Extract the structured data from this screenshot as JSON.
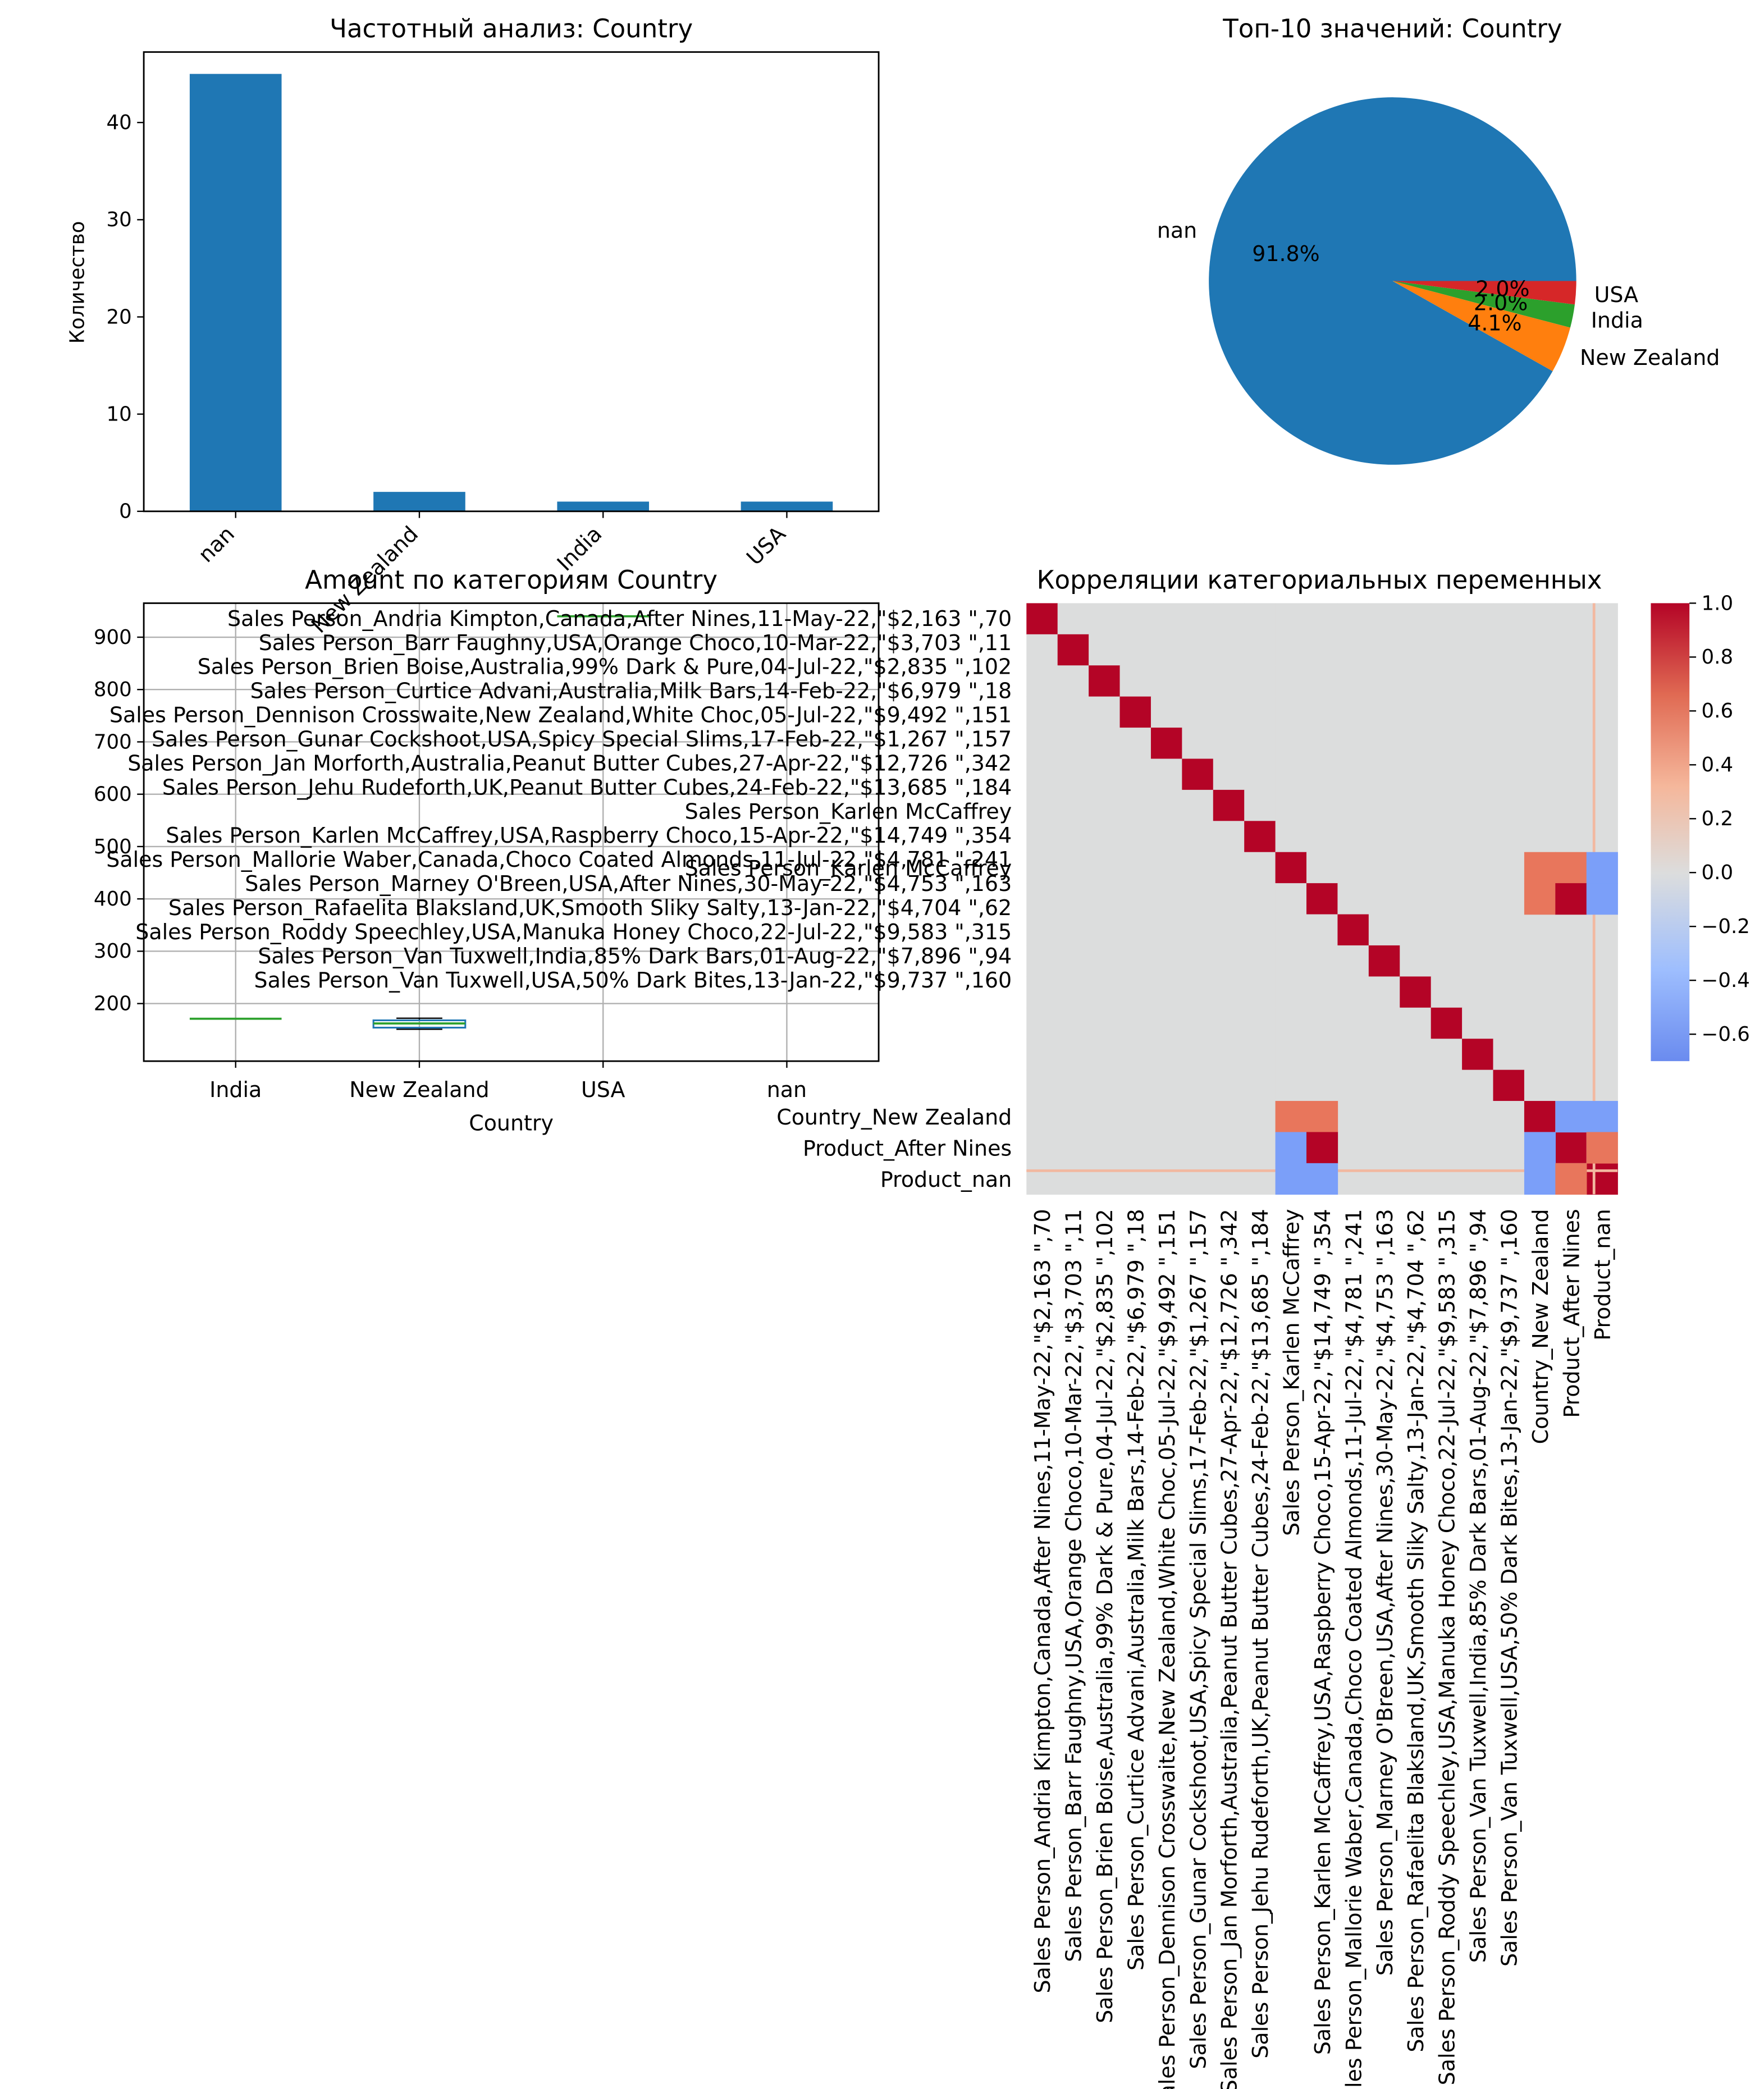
{
  "chart_data": [
    {
      "type": "bar",
      "title": "Частотный анализ: Country",
      "xlabel": "",
      "ylabel": "Количество",
      "categories": [
        "nan",
        "New Zealand",
        "India",
        "USA"
      ],
      "values": [
        45,
        2,
        1,
        1
      ],
      "yticks": [
        0,
        10,
        20,
        30,
        40
      ],
      "ylim": [
        0,
        47.25
      ],
      "color": "#1f77b4",
      "grid": false
    },
    {
      "type": "pie",
      "title": "Топ-10 значений: Country",
      "labels": [
        "nan",
        "New Zealand",
        "India",
        "USA"
      ],
      "values": [
        45,
        2,
        1,
        1
      ],
      "percent_labels": [
        "91.8%",
        "4.1%",
        "2.0%",
        "2.0%"
      ],
      "colors": [
        "#1f77b4",
        "#ff7f0e",
        "#2ca02c",
        "#d62728"
      ]
    },
    {
      "type": "box",
      "title": "Amount по категориям Country",
      "xlabel": "Country",
      "categories": [
        "India",
        "New Zealand",
        "USA",
        "nan"
      ],
      "yticks": [
        200,
        300,
        400,
        500,
        600,
        700,
        800,
        900
      ],
      "ylim": [
        90,
        965
      ],
      "series": [
        {
          "name": "India",
          "values": [
            {
              "min": 171,
              "q1": 171,
              "median": 171,
              "q3": 171,
              "max": 171
            }
          ]
        },
        {
          "name": "New Zealand",
          "values": [
            {
              "min": 151,
              "q1": 154,
              "median": 162,
              "q3": 168,
              "max": 172
            }
          ]
        },
        {
          "name": "USA",
          "values": [
            {
              "min": 940,
              "q1": 940,
              "median": 940,
              "q3": 940,
              "max": 940
            }
          ]
        },
        {
          "name": "nan",
          "values": []
        }
      ],
      "overlay_labels": [
        "Sales Person_Andria Kimpton,Canada,After Nines,11-May-22,\"$2,163 \",70",
        "Sales Person_Barr Faughny,USA,Orange Choco,10-Mar-22,\"$3,703 \",11",
        "Sales Person_Brien Boise,Australia,99% Dark & Pure,04-Jul-22,\"$2,835 \",102",
        "Sales Person_Curtice Advani,Australia,Milk Bars,14-Feb-22,\"$6,979 \",18",
        "Sales Person_Dennison Crosswaite,New Zealand,White Choc,05-Jul-22,\"$9,492 \",151",
        "Sales Person_Gunar Cockshoot,USA,Spicy Special Slims,17-Feb-22,\"$1,267 \",157",
        "Sales Person_Jan Morforth,Australia,Peanut Butter Cubes,27-Apr-22,\"$12,726 \",342",
        "Sales Person_Jehu Rudeforth,UK,Peanut Butter Cubes,24-Feb-22,\"$13,685 \",184",
        "Sales Person_Karlen McCaffrey",
        "Sales Person_Karlen McCaffrey,USA,Raspberry Choco,15-Apr-22,\"$14,749 \",354",
        "Sales Person_Mallorie Waber,Canada,Choco Coated Almonds,11-Jul-22,\"$4,781 \",241",
        "Sales Person_Marney O'Breen,USA,After Nines,30-May-22,\"$4,753 \",163",
        "Sales Person_Rafaelita Blaksland,UK,Smooth Sliky Salty,13-Jan-22,\"$4,704 \",62",
        "Sales Person_Roddy Speechley,USA,Manuka Honey Choco,22-Jul-22,\"$9,583 \",315",
        "Sales Person_Van Tuxwell,India,85% Dark Bars,01-Aug-22,\"$7,896 \",94",
        "Sales Person_Van Tuxwell,USA,50% Dark Bites,13-Jan-22,\"$9,737 \",160"
      ],
      "grid": true
    },
    {
      "type": "heatmap",
      "title": "Корреляции категориальных переменных",
      "colormap": "coolwarm",
      "vmin": -0.7,
      "vmax": 1.0,
      "colorbar_ticks": [
        "1.0",
        "0.8",
        "0.6",
        "0.4",
        "0.2",
        "0.0",
        "−0.2",
        "−0.4",
        "−0.6"
      ],
      "row_labels": [
        "Sales Person_Andria Kimpton,Canada,After Nines,11-May-22,\"$2,163 \",70",
        "Sales Person_Barr Faughny,USA,Orange Choco,10-Mar-22,\"$3,703 \",11",
        "Sales Person_Brien Boise,Australia,99% Dark & Pure,04-Jul-22,\"$2,835 \",102",
        "Sales Person_Curtice Advani,Australia,Milk Bars,14-Feb-22,\"$6,979 \",18",
        "Sales Person_Dennison Crosswaite,New Zealand,White Choc,05-Jul-22,\"$9,492 \",151",
        "Sales Person_Gunar Cockshoot,USA,Spicy Special Slims,17-Feb-22,\"$1,267 \",157",
        "Sales Person_Jan Morforth,Australia,Peanut Butter Cubes,27-Apr-22,\"$12,726 \",342",
        "Sales Person_Jehu Rudeforth,UK,Peanut Butter Cubes,24-Feb-22,\"$13,685 \",184",
        "Sales Person_Karlen McCaffrey",
        "Sales Person_Karlen McCaffrey,USA,Raspberry Choco,15-Apr-22,\"$14,749 \",354",
        "Sales Person_Mallorie Waber,Canada,Choco Coated Almonds,11-Jul-22,\"$4,781 \",241",
        "Sales Person_Marney O'Breen,USA,After Nines,30-May-22,\"$4,753 \",163",
        "Sales Person_Rafaelita Blaksland,UK,Smooth Sliky Salty,13-Jan-22,\"$4,704 \",62",
        "Sales Person_Roddy Speechley,USA,Manuka Honey Choco,22-Jul-22,\"$9,583 \",315",
        "Sales Person_Van Tuxwell,India,85% Dark Bars,01-Aug-22,\"$7,896 \",94",
        "Sales Person_Van Tuxwell,USA,50% Dark Bites,13-Jan-22,\"$9,737 \",160",
        "Country_New Zealand",
        "Product_After Nines",
        "Product_nan"
      ],
      "col_labels": [
        "Sales Person_Andria Kimpton,Canada,After Nines,11-May-22,\"$2,163 \",70",
        "Sales Person_Barr Faughny,USA,Orange Choco,10-Mar-22,\"$3,703 \",11",
        "Sales Person_Brien Boise,Australia,99% Dark & Pure,04-Jul-22,\"$2,835 \",102",
        "Sales Person_Curtice Advani,Australia,Milk Bars,14-Feb-22,\"$6,979 \",18",
        "Sales Person_Dennison Crosswaite,New Zealand,White Choc,05-Jul-22,\"$9,492 \",151",
        "Sales Person_Gunar Cockshoot,USA,Spicy Special Slims,17-Feb-22,\"$1,267 \",157",
        "Sales Person_Jan Morforth,Australia,Peanut Butter Cubes,27-Apr-22,\"$12,726 \",342",
        "Sales Person_Jehu Rudeforth,UK,Peanut Butter Cubes,24-Feb-22,\"$13,685 \",184",
        "Sales Person_Karlen McCaffrey",
        "Sales Person_Karlen McCaffrey,USA,Raspberry Choco,15-Apr-22,\"$14,749 \",354",
        "Sales Person_Mallorie Waber,Canada,Choco Coated Almonds,11-Jul-22,\"$4,781 \",241",
        "Sales Person_Marney O'Breen,USA,After Nines,30-May-22,\"$4,753 \",163",
        "Sales Person_Rafaelita Blaksland,UK,Smooth Sliky Salty,13-Jan-22,\"$4,704 \",62",
        "Sales Person_Roddy Speechley,USA,Manuka Honey Choco,22-Jul-22,\"$9,583 \",315",
        "Sales Person_Van Tuxwell,India,85% Dark Bars,01-Aug-22,\"$7,896 \",94",
        "Sales Person_Van Tuxwell,USA,50% Dark Bites,13-Jan-22,\"$9,737 \",160",
        "Country_New Zealand",
        "Product_After Nines",
        "Product_nan"
      ]
    }
  ]
}
